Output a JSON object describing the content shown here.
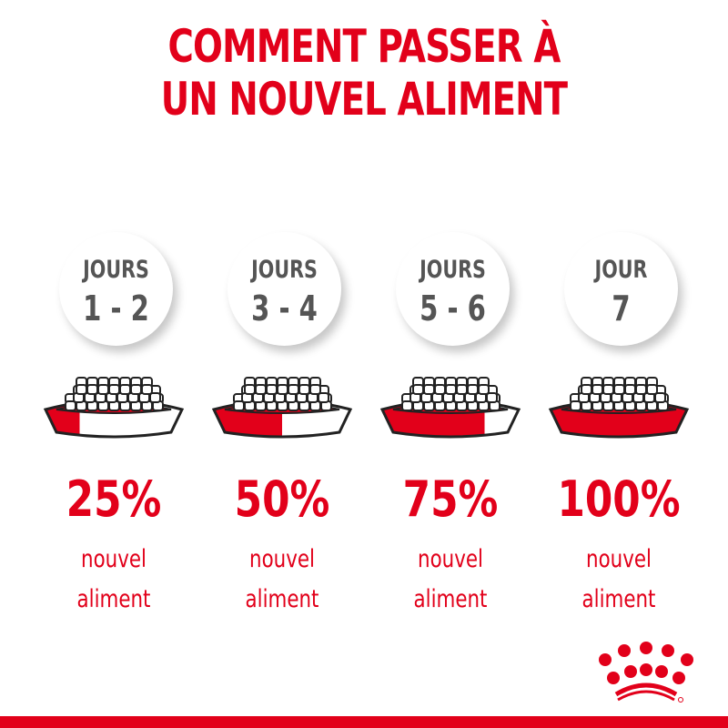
{
  "title": {
    "line1": "COMMENT PASSER À",
    "line2": "UN NOUVEL ALIMENT"
  },
  "colors": {
    "brand_red": "#e2001a",
    "day_text": "#555555"
  },
  "steps": [
    {
      "days_label": "JOURS",
      "days_value": "1 - 2",
      "percent": "25%",
      "new_food_fraction": 0.25,
      "caption_line1": "nouvel",
      "caption_line2": "aliment"
    },
    {
      "days_label": "JOURS",
      "days_value": "3 - 4",
      "percent": "50%",
      "new_food_fraction": 0.5,
      "caption_line1": "nouvel",
      "caption_line2": "aliment"
    },
    {
      "days_label": "JOURS",
      "days_value": "5 - 6",
      "percent": "75%",
      "new_food_fraction": 0.75,
      "caption_line1": "nouvel",
      "caption_line2": "aliment"
    },
    {
      "days_label": "JOUR",
      "days_value": "7",
      "percent": "100%",
      "new_food_fraction": 1.0,
      "caption_line1": "nouvel",
      "caption_line2": "aliment"
    }
  ],
  "logo": {
    "icon": "royal-canin-crown-icon"
  }
}
